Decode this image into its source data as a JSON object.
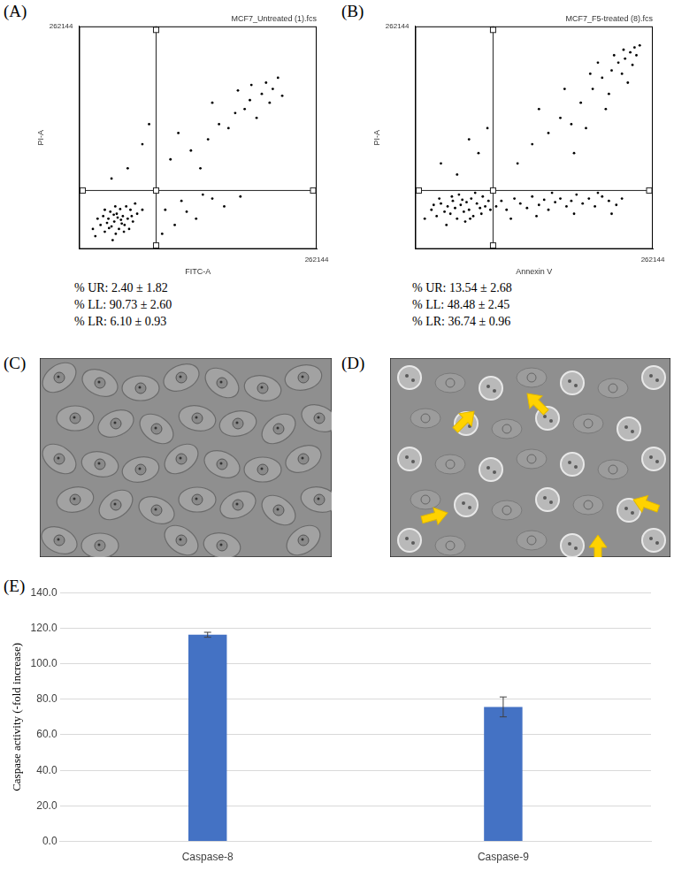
{
  "panel_labels": [
    "(A)",
    "(B)",
    "(C)",
    "(D)",
    "(E)"
  ],
  "chart_data": [
    {
      "type": "scatter",
      "title": "MCF7_Untreated (1).fcs",
      "x_label": "FITC-A",
      "y_label": "PI-A",
      "log": true,
      "xlim": [
        10,
        262144
      ],
      "ylim": [
        10,
        262144
      ],
      "xticks": [
        262144
      ],
      "yticks": [
        262144
      ],
      "grid": false,
      "color": "#000000",
      "quadrant_lines": {
        "x": 270,
        "y": 145
      },
      "annotations": [
        "% UR: 2.40 ± 1.82",
        "% LL: 90.73 ± 2.60",
        "% LR: 6.10 ± 0.93"
      ],
      "x": [
        20,
        25,
        30,
        35,
        40,
        45,
        50,
        55,
        60,
        65,
        70,
        38,
        28,
        48,
        80,
        90,
        75,
        33,
        42,
        58,
        100,
        120,
        22,
        52,
        68,
        44,
        36,
        62,
        85,
        110,
        150,
        30,
        18,
        47,
        95,
        500,
        1200,
        2500,
        4000,
        8000,
        15000,
        25000,
        40000,
        30000,
        12000,
        6000,
        3000,
        20000,
        50000,
        9000,
        700,
        1800,
        35000,
        16000,
        60000,
        80,
        150,
        40,
        200,
        400,
        800,
        1500,
        3000,
        600,
        5000,
        2000,
        10000,
        1000,
        350
      ],
      "values": [
        18,
        30,
        22,
        40,
        28,
        35,
        50,
        25,
        38,
        45,
        30,
        55,
        45,
        20,
        40,
        60,
        70,
        33,
        15,
        62,
        35,
        50,
        40,
        42,
        22,
        48,
        26,
        32,
        25,
        80,
        60,
        60,
        25,
        70,
        45,
        600,
        900,
        1500,
        3000,
        5000,
        9000,
        12000,
        15000,
        20000,
        6000,
        2500,
        8000,
        4000,
        25000,
        14000,
        2000,
        400,
        8000,
        18000,
        11000,
        400,
        1200,
        250,
        3000,
        60,
        90,
        40,
        100,
        30,
        70,
        120,
        110,
        55,
        20
      ]
    },
    {
      "type": "scatter",
      "title": "MCF7_F5-treated (8).fcs",
      "x_label": "Annexin V",
      "y_label": "PI-A",
      "log": true,
      "xlim": [
        10,
        262144
      ],
      "ylim": [
        10,
        262144
      ],
      "xticks": [
        262144
      ],
      "yticks": [
        262144
      ],
      "grid": false,
      "color": "#000000",
      "quadrant_lines": {
        "x": 280,
        "y": 145
      },
      "annotations": [
        "% UR: 13.54 ± 2.68",
        "% LL: 48.48 ± 2.45",
        "% LR: 36.74 ± 0.96"
      ],
      "x": [
        15,
        20,
        25,
        30,
        35,
        40,
        45,
        50,
        55,
        60,
        70,
        80,
        90,
        100,
        110,
        120,
        140,
        160,
        180,
        200,
        230,
        250,
        28,
        38,
        65,
        85,
        130,
        22,
        48,
        75,
        105,
        170,
        320,
        400,
        500,
        700,
        900,
        1200,
        1500,
        2000,
        2500,
        3000,
        4000,
        5000,
        6500,
        8000,
        10000,
        13000,
        17000,
        22000,
        30000,
        40000,
        55000,
        70000,
        600,
        1800,
        3500,
        9000,
        25000,
        45000,
        800,
        1500,
        3000,
        5000,
        8000,
        12000,
        20000,
        30000,
        45000,
        60000,
        80000,
        100000,
        120000,
        40000,
        70000,
        25000,
        15000,
        90000,
        50000,
        6000,
        2000,
        35000,
        110000,
        130000,
        75000,
        18000,
        9000,
        150000,
        60,
        150,
        30,
        220,
        100
      ],
      "values": [
        40,
        60,
        45,
        80,
        55,
        70,
        50,
        90,
        65,
        40,
        75,
        55,
        85,
        60,
        100,
        45,
        80,
        65,
        110,
        70,
        90,
        60,
        100,
        30,
        120,
        35,
        130,
        75,
        110,
        95,
        40,
        50,
        70,
        90,
        60,
        100,
        80,
        65,
        110,
        75,
        95,
        60,
        85,
        100,
        70,
        90,
        120,
        80,
        100,
        70,
        110,
        90,
        75,
        100,
        40,
        45,
        130,
        50,
        130,
        50,
        500,
        1200,
        2000,
        4000,
        3000,
        8000,
        15000,
        25000,
        35000,
        50000,
        60000,
        80000,
        100000,
        12000,
        30000,
        50000,
        2500,
        20000,
        70000,
        15000,
        6000,
        6000,
        45000,
        70000,
        90000,
        30000,
        800,
        110000,
        300,
        800,
        500,
        2500,
        1500
      ]
    },
    {
      "type": "bar",
      "y_label": "Caspase activity (-fold increase)",
      "categories": [
        "Caspase-8",
        "Caspase-9"
      ],
      "values": [
        116.3,
        75.7
      ],
      "errors": [
        1.4,
        5.6
      ],
      "color": "#4472c4",
      "ylim": [
        0,
        140
      ],
      "yticks": [
        {
          "value": 0,
          "label": "0.0"
        },
        {
          "value": 20,
          "label": "20.0"
        },
        {
          "value": 40,
          "label": "40.0"
        },
        {
          "value": 60,
          "label": "60.0"
        },
        {
          "value": 80,
          "label": "80.0"
        },
        {
          "value": 100,
          "label": "100.0"
        },
        {
          "value": 120,
          "label": "120.0"
        },
        {
          "value": 140,
          "label": "140.0"
        }
      ],
      "grid": true
    }
  ]
}
